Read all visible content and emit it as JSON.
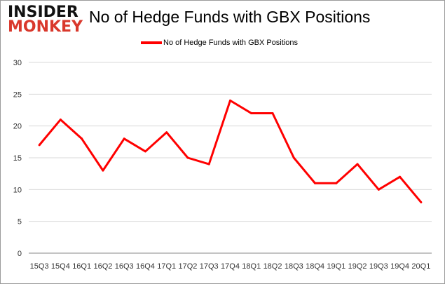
{
  "logo": {
    "line1": "INSIDER",
    "line2": "MONKEY"
  },
  "chart_data": {
    "type": "line",
    "title": "No of Hedge Funds with GBX Positions",
    "categories": [
      "15Q3",
      "15Q4",
      "16Q1",
      "16Q2",
      "16Q3",
      "16Q4",
      "17Q1",
      "17Q2",
      "17Q3",
      "17Q4",
      "18Q1",
      "18Q2",
      "18Q3",
      "18Q4",
      "19Q1",
      "19Q2",
      "19Q3",
      "19Q4",
      "20Q1"
    ],
    "series": [
      {
        "name": "No of Hedge Funds with GBX Positions",
        "color": "#ff0000",
        "values": [
          17,
          21,
          18,
          13,
          18,
          16,
          19,
          15,
          14,
          24,
          22,
          22,
          15,
          11,
          11,
          14,
          10,
          12,
          8
        ]
      }
    ],
    "ylim": [
      0,
      30
    ],
    "yticks": [
      0,
      5,
      10,
      15,
      20,
      25,
      30
    ],
    "grid": true,
    "legend": "top-center"
  }
}
